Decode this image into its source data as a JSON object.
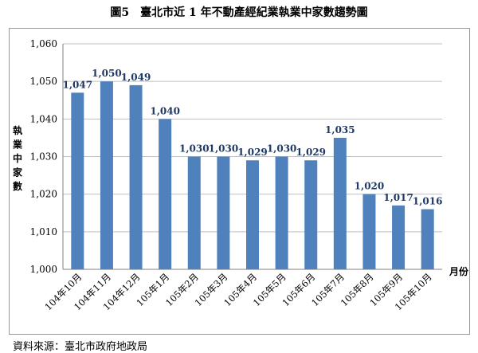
{
  "title": "圖5　臺北市近 1 年不動產經紀業執業中家數趨勢圖",
  "source": "資料來源：臺北市政府地政局",
  "colors": {
    "bar": "#4F81BD",
    "label": "#1F3864",
    "grid": "#BFBFBF",
    "axis": "#808080"
  },
  "chart_data": {
    "type": "bar",
    "title": "圖5　臺北市近 1 年不動產經紀業執業中家數趨勢圖",
    "xlabel": "月份",
    "ylabel": "執業中家數",
    "ylim": [
      1000,
      1060
    ],
    "ytick_step": 10,
    "yticks": [
      "1,000",
      "1,010",
      "1,020",
      "1,030",
      "1,040",
      "1,050",
      "1,060"
    ],
    "grid": true,
    "categories": [
      "104年10月",
      "104年11月",
      "104年12月",
      "105年1月",
      "105年2月",
      "105年3月",
      "105年4月",
      "105年5月",
      "105年6月",
      "105年7月",
      "105年8月",
      "105年9月",
      "105年10月"
    ],
    "values": [
      1047,
      1050,
      1049,
      1040,
      1030,
      1030,
      1029,
      1030,
      1029,
      1035,
      1020,
      1017,
      1016
    ],
    "data_labels": [
      "1,047",
      "1,050",
      "1,049",
      "1,040",
      "1,030",
      "1,030",
      "1,029",
      "1,030",
      "1,029",
      "1,035",
      "1,020",
      "1,017",
      "1,016"
    ]
  }
}
